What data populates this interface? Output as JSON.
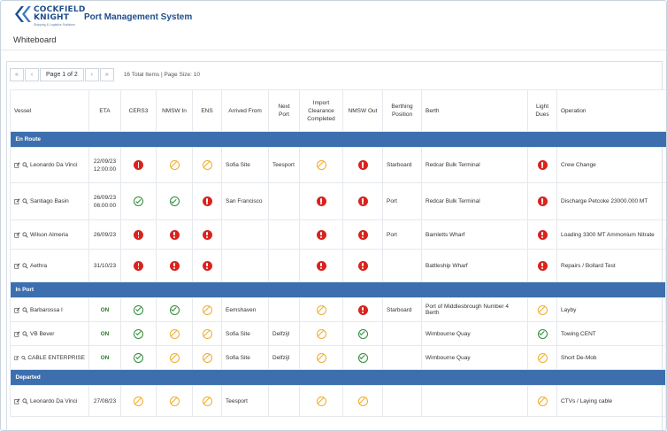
{
  "app": {
    "brand_line1": "COCKFIELD",
    "brand_line2": "KNIGHT",
    "brand_tagline": "Shipping & Logistics Solutions",
    "title": "Port Management System",
    "page_title": "Whiteboard"
  },
  "pager": {
    "first_icon": "double-chevron-left-icon",
    "prev_icon": "chevron-left-icon",
    "label": "Page 1 of 2",
    "next_icon": "chevron-right-icon",
    "last_icon": "double-chevron-right-icon",
    "first": "«",
    "prev": "‹",
    "next": "›",
    "last": "»",
    "info": "16 Total Items | Page Size: 10"
  },
  "columns": [
    "Vessel",
    "ETA",
    "CERS3",
    "NMSW In",
    "ENS",
    "Arrived From",
    "Next Port",
    "Import Clearance Completed",
    "NMSW Out",
    "Berthing Position",
    "Berth",
    "Light Dues",
    "Operation"
  ],
  "status_colors": {
    "error": "#d9231f",
    "ok": "#2e8b3a",
    "na": "#f0ad2b",
    "group_bg": "#3d6fae"
  },
  "groups": [
    {
      "label": "En Route",
      "rows": [
        {
          "vessel": "Leonardo Da Vinci",
          "eta1": "22/09/23",
          "eta2": "12:00:00",
          "cers3": "error",
          "nmsw_in": "na",
          "ens": "na",
          "arrived_from": "Sofia Site",
          "next_port": "Teesport",
          "import": "na",
          "nmsw_out": "error",
          "berthing": "Starboard",
          "berth": "Redcar Bulk Terminal",
          "light_dues": "error",
          "operation": "Crew Change"
        },
        {
          "vessel": "Santiago Basin",
          "eta1": "26/09/23",
          "eta2": "06:00:00",
          "cers3": "ok",
          "nmsw_in": "ok",
          "ens": "error",
          "arrived_from": "San Francisco",
          "next_port": "",
          "import": "error",
          "nmsw_out": "error",
          "berthing": "Port",
          "berth": "Redcar Bulk Terminal",
          "light_dues": "error",
          "operation": "Discharge Petcoke 23000.000 MT"
        },
        {
          "vessel": "Wilson Almeria",
          "eta1": "26/09/23",
          "eta2": "",
          "cers3": "error",
          "nmsw_in": "error",
          "ens": "error",
          "arrived_from": "",
          "next_port": "",
          "import": "error",
          "nmsw_out": "error",
          "berthing": "Port",
          "berth": "Bamletts Wharf",
          "light_dues": "error",
          "operation": "Loading 3300 MT Ammonium Nitrate"
        },
        {
          "vessel": "Aethra",
          "eta1": "31/10/23",
          "eta2": "",
          "cers3": "error",
          "nmsw_in": "error",
          "ens": "error",
          "arrived_from": "",
          "next_port": "",
          "import": "error",
          "nmsw_out": "error",
          "berthing": "",
          "berth": "Battleship Wharf",
          "light_dues": "error",
          "operation": "Repairs / Bollard Test"
        }
      ]
    },
    {
      "label": "In Port",
      "rows": [
        {
          "vessel": "Barbarossa I",
          "eta1": "ON",
          "eta2": "",
          "cers3": "ok",
          "nmsw_in": "ok",
          "ens": "na",
          "arrived_from": "Eemshaven",
          "next_port": "",
          "import": "na",
          "nmsw_out": "error",
          "berthing": "Starboard",
          "berth": "Port of Middlesbrough Number 4 Berth",
          "light_dues": "na",
          "operation": "Layby"
        },
        {
          "vessel": "VB Bever",
          "eta1": "ON",
          "eta2": "",
          "cers3": "ok",
          "nmsw_in": "na",
          "ens": "na",
          "arrived_from": "Sofia Site",
          "next_port": "Delfzijl",
          "import": "na",
          "nmsw_out": "ok",
          "berthing": "",
          "berth": "Wimbourne Quay",
          "light_dues": "ok",
          "operation": "Towing CENT"
        },
        {
          "vessel": "CABLE ENTERPRISE",
          "eta1": "ON",
          "eta2": "",
          "cers3": "ok",
          "nmsw_in": "na",
          "ens": "na",
          "arrived_from": "Sofia Site",
          "next_port": "Delfzijl",
          "import": "na",
          "nmsw_out": "ok",
          "berthing": "",
          "berth": "Wimbourne Quay",
          "light_dues": "na",
          "operation": "Short De-Mob"
        }
      ]
    },
    {
      "label": "Departed",
      "rows": [
        {
          "vessel": "Leonardo Da Vinci",
          "eta1": "27/08/23",
          "eta2": "",
          "cers3": "na",
          "nmsw_in": "na",
          "ens": "na",
          "arrived_from": "Teesport",
          "next_port": "",
          "import": "na",
          "nmsw_out": "na",
          "berthing": "",
          "berth": "",
          "light_dues": "na",
          "operation": "CTVs / Laying cable"
        }
      ]
    }
  ]
}
